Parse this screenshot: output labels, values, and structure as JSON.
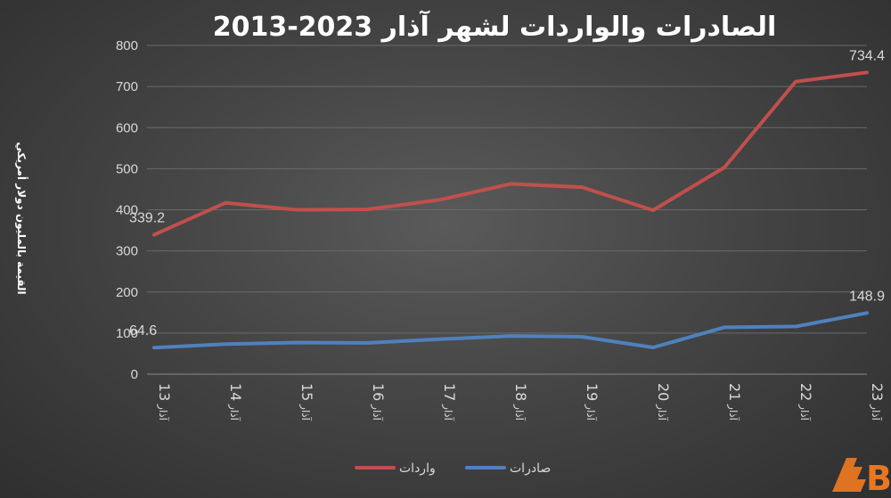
{
  "chart_data": {
    "type": "line",
    "title": "الصادرات والواردات لشهر آذار 2023-2013",
    "ylabel": "القيمة بالمليون دولار أمريكي",
    "xlabel": "",
    "categories": [
      "آذار 13",
      "آذار 14",
      "آذار 15",
      "آذار 16",
      "آذار 17",
      "آذار 18",
      "آذار 19",
      "آذار 20",
      "آذار 21",
      "آذار 22",
      "آذار 23"
    ],
    "category_parts": [
      {
        "word": "آذار",
        "num": "13"
      },
      {
        "word": "آذار",
        "num": "14"
      },
      {
        "word": "آذار",
        "num": "15"
      },
      {
        "word": "آذار",
        "num": "16"
      },
      {
        "word": "آذار",
        "num": "17"
      },
      {
        "word": "آذار",
        "num": "18"
      },
      {
        "word": "آذار",
        "num": "19"
      },
      {
        "word": "آذار",
        "num": "20"
      },
      {
        "word": "آذار",
        "num": "21"
      },
      {
        "word": "آذار",
        "num": "22"
      },
      {
        "word": "آذار",
        "num": "23"
      }
    ],
    "ylim": [
      0,
      800
    ],
    "yticks": [
      0,
      100,
      200,
      300,
      400,
      500,
      600,
      700,
      800
    ],
    "grid": true,
    "legend_position": "bottom",
    "series": [
      {
        "name": "واردات",
        "color": "#c0504d",
        "values": [
          339.2,
          417,
          400,
          401,
          424,
          463,
          455,
          399,
          503,
          712,
          734.4
        ],
        "labels": [
          {
            "index": 0,
            "text": "339.2"
          },
          {
            "index": 10,
            "text": "734.4"
          }
        ]
      },
      {
        "name": "صادرات",
        "color": "#4f81bd",
        "values": [
          64.6,
          73,
          77,
          76,
          85,
          93,
          91,
          65,
          114,
          116,
          148.9
        ],
        "labels": [
          {
            "index": 0,
            "text": "64.6"
          },
          {
            "index": 10,
            "text": "148.9"
          }
        ]
      }
    ]
  },
  "logo": {
    "text": "B",
    "color": "#e87722"
  }
}
